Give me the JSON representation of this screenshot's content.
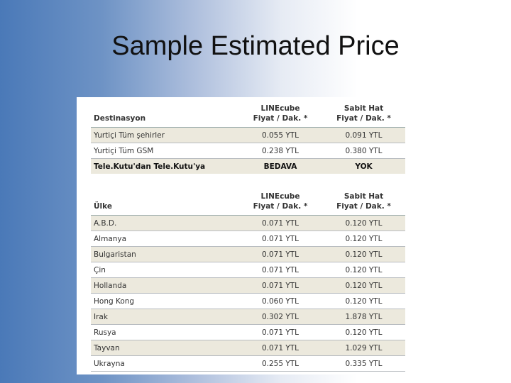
{
  "slide": {
    "title": "Sample Estimated Price"
  },
  "table1": {
    "col1": "Destinasyon",
    "col2_line1": "LINEcube",
    "col2_line2": "Fiyat / Dak. *",
    "col3_line1": "Sabit Hat",
    "col3_line2": "Fiyat / Dak. *",
    "rows": [
      {
        "name": "Yurtiçi Tüm şehirler",
        "linecube": "0.055 YTL",
        "sabit": "0.091 YTL"
      },
      {
        "name": "Yurtiçi Tüm GSM",
        "linecube": "0.238 YTL",
        "sabit": "0.380 YTL"
      },
      {
        "name": "Tele.Kutu'dan Tele.Kutu'ya",
        "linecube": "BEDAVA",
        "sabit": "YOK"
      }
    ]
  },
  "table2": {
    "col1": "Ülke",
    "col2_line1": "LINEcube",
    "col2_line2": "Fiyat / Dak. *",
    "col3_line1": "Sabit Hat",
    "col3_line2": "Fiyat / Dak. *",
    "rows": [
      {
        "name": "A.B.D.",
        "linecube": "0.071 YTL",
        "sabit": "0.120 YTL"
      },
      {
        "name": "Almanya",
        "linecube": "0.071 YTL",
        "sabit": "0.120 YTL"
      },
      {
        "name": "Bulgaristan",
        "linecube": "0.071 YTL",
        "sabit": "0.120 YTL"
      },
      {
        "name": "Çin",
        "linecube": "0.071 YTL",
        "sabit": "0.120 YTL"
      },
      {
        "name": "Hollanda",
        "linecube": "0.071 YTL",
        "sabit": "0.120 YTL"
      },
      {
        "name": "Hong Kong",
        "linecube": "0.060 YTL",
        "sabit": "0.120 YTL"
      },
      {
        "name": "Irak",
        "linecube": "0.302 YTL",
        "sabit": "1.878 YTL"
      },
      {
        "name": "Rusya",
        "linecube": "0.071 YTL",
        "sabit": "0.120 YTL"
      },
      {
        "name": "Tayvan",
        "linecube": "0.071 YTL",
        "sabit": "1.029 YTL"
      },
      {
        "name": "Ukrayna",
        "linecube": "0.255 YTL",
        "sabit": "0.335 YTL"
      }
    ]
  }
}
